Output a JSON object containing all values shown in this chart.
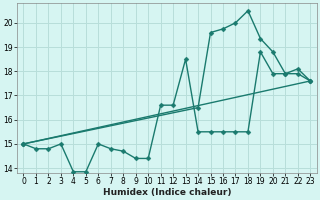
{
  "xlabel": "Humidex (Indice chaleur)",
  "bg_color": "#d6f5f2",
  "grid_color": "#b8deda",
  "line_color": "#1a7a6e",
  "xlim": [
    -0.5,
    23.5
  ],
  "ylim": [
    13.8,
    20.8
  ],
  "yticks": [
    14,
    15,
    16,
    17,
    18,
    19,
    20
  ],
  "xticks": [
    0,
    1,
    2,
    3,
    4,
    5,
    6,
    7,
    8,
    9,
    10,
    11,
    12,
    13,
    14,
    15,
    16,
    17,
    18,
    19,
    20,
    21,
    22,
    23
  ],
  "line1_x": [
    0,
    1,
    2,
    3,
    4,
    5,
    6,
    7,
    8,
    9,
    10,
    11,
    12,
    13,
    14,
    15,
    16,
    17,
    18,
    19,
    20,
    21,
    22,
    23
  ],
  "line1_y": [
    15.0,
    14.8,
    14.8,
    15.0,
    13.85,
    13.85,
    15.0,
    14.8,
    14.7,
    14.4,
    14.4,
    16.6,
    16.6,
    18.5,
    15.5,
    15.5,
    15.5,
    15.5,
    15.5,
    18.8,
    17.9,
    17.9,
    18.1,
    17.6
  ],
  "line2_x": [
    0,
    23
  ],
  "line2_y": [
    15.0,
    17.6
  ],
  "line3_x": [
    0,
    14,
    15,
    16,
    17,
    18,
    19,
    20,
    21,
    22,
    23
  ],
  "line3_y": [
    15.0,
    16.5,
    19.6,
    19.75,
    20.0,
    20.5,
    19.35,
    18.8,
    17.9,
    17.9,
    17.6
  ],
  "marker": "D",
  "marker_size": 2.5,
  "line_width": 1.0,
  "tick_fontsize": 5.5,
  "xlabel_fontsize": 6.5
}
